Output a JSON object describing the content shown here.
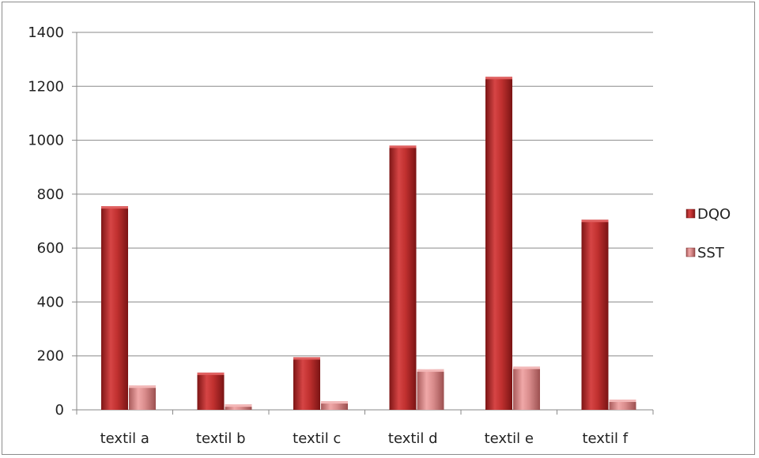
{
  "chart_data": {
    "type": "bar",
    "categories": [
      "textil a",
      "textil b",
      "textil c",
      "textil d",
      "textil e",
      "textil f"
    ],
    "series": [
      {
        "name": "DQO",
        "values": [
          755,
          138,
          195,
          980,
          1235,
          705
        ],
        "color": "#c0302f"
      },
      {
        "name": "SST",
        "values": [
          90,
          20,
          32,
          150,
          160,
          38
        ],
        "color": "#d98c8c"
      }
    ],
    "ylim": [
      0,
      1400
    ],
    "yticks": [
      0,
      200,
      400,
      600,
      800,
      1000,
      1200,
      1400
    ],
    "grid": true,
    "legend": "right"
  }
}
